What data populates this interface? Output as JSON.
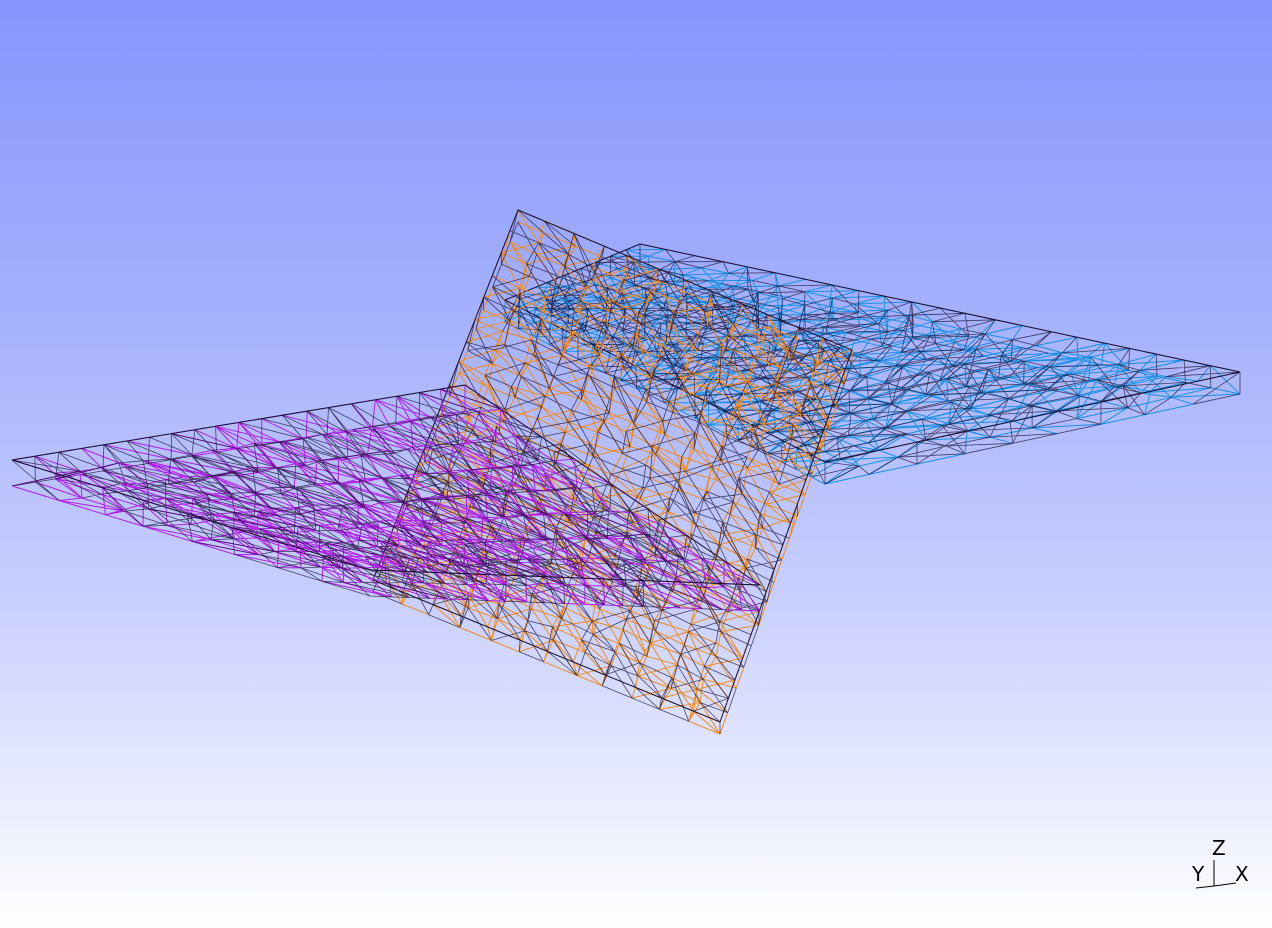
{
  "viewport": {
    "background_top": "#8595fc",
    "background_bottom": "#ffffff"
  },
  "meshes": [
    {
      "id": "blue-slab",
      "color": "#1a8fe6",
      "seed": 11
    },
    {
      "id": "orange-wall",
      "color": "#f08a1e",
      "seed": 23
    },
    {
      "id": "purple-slab",
      "color": "#b21ee8",
      "seed": 37
    }
  ],
  "axis_triad": {
    "z_label": "Z",
    "y_label": "Y",
    "x_label": "X",
    "color": "#000000"
  }
}
